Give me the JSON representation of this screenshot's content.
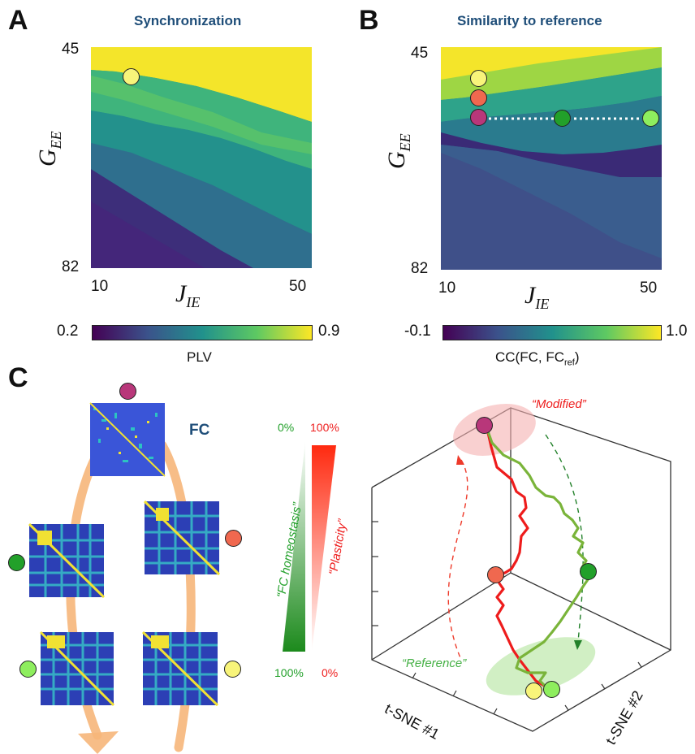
{
  "panel_a": {
    "letter": "A",
    "title": "Synchronization",
    "y_label_main": "G",
    "y_label_sub": "EE",
    "y_top": "45",
    "y_bottom": "82",
    "x_label_main": "J",
    "x_label_sub": "IE",
    "x_left": "10",
    "x_right": "50",
    "cb_min": "0.2",
    "cb_max": "0.9",
    "cb_label": "PLV"
  },
  "panel_b": {
    "letter": "B",
    "title": "Similarity to reference",
    "y_label_main": "G",
    "y_label_sub": "EE",
    "y_top": "45",
    "y_bottom": "82",
    "x_label_main": "J",
    "x_label_sub": "IE",
    "x_left": "10",
    "x_right": "50",
    "cb_min": "-0.1",
    "cb_max": "1.0",
    "cb_label_main": "CC(FC, FC",
    "cb_label_sub": "ref",
    "cb_label_end": ")"
  },
  "panel_c": {
    "letter": "C",
    "fc_label": "FC",
    "homeostasis_label": "“FC homeostasis”",
    "plasticity_label": "“Plasticity”",
    "homeo_top": "0%",
    "homeo_bottom": "100%",
    "plast_top": "100%",
    "plast_bottom": "0%",
    "modified_label": "“Modified”",
    "reference_label": "“Reference”",
    "tsne1": "t-SNE #1",
    "tsne2": "t-SNE #2"
  },
  "colors": {
    "magenta": "#b8377a",
    "salmon": "#f0684f",
    "dark_green": "#22a02a",
    "light_green": "#8eee5e",
    "pale_yellow": "#f8f47a",
    "title_blue": "#1f4e79",
    "red_curve": "#ee1c1c",
    "green_curve": "#7ab43a",
    "orange_arrow": "#f6b67a"
  }
}
